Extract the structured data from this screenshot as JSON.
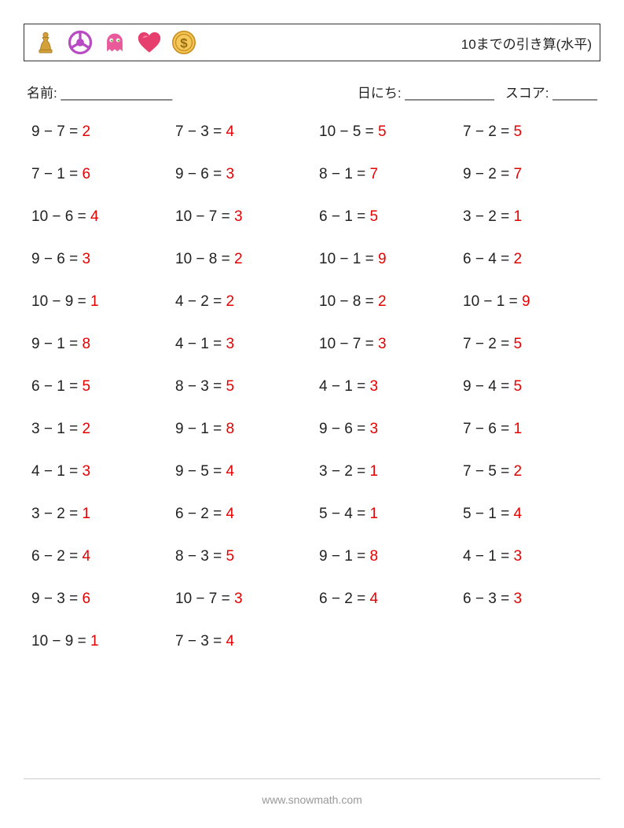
{
  "header": {
    "title": "10までの引き算(水平)",
    "icons": {
      "chess": {
        "color": "#d4a03a",
        "name": "chess-pawn-icon"
      },
      "wheel": {
        "color": "#b84bc4",
        "name": "steering-wheel-icon"
      },
      "ghost": {
        "color": "#e85a9a",
        "name": "ghost-icon"
      },
      "heart": {
        "color": "#e63e6d",
        "name": "heart-icon"
      },
      "coin": {
        "color": "#e8a23a",
        "name": "dollar-coin-icon"
      }
    }
  },
  "meta": {
    "name_label": "名前: _______________",
    "date_label": "日にち: ____________",
    "score_label": "スコア: ______"
  },
  "style": {
    "problem_fontsize": 19,
    "problem_color": "#222222",
    "answer_color": "#e60000",
    "background": "#ffffff",
    "columns": 4,
    "rows": 13,
    "row_gap": 32,
    "col_gap": 18
  },
  "problems": [
    {
      "a": 9,
      "b": 7,
      "ans": 2
    },
    {
      "a": 7,
      "b": 3,
      "ans": 4
    },
    {
      "a": 10,
      "b": 5,
      "ans": 5
    },
    {
      "a": 7,
      "b": 2,
      "ans": 5
    },
    {
      "a": 7,
      "b": 1,
      "ans": 6
    },
    {
      "a": 9,
      "b": 6,
      "ans": 3
    },
    {
      "a": 8,
      "b": 1,
      "ans": 7
    },
    {
      "a": 9,
      "b": 2,
      "ans": 7
    },
    {
      "a": 10,
      "b": 6,
      "ans": 4
    },
    {
      "a": 10,
      "b": 7,
      "ans": 3
    },
    {
      "a": 6,
      "b": 1,
      "ans": 5
    },
    {
      "a": 3,
      "b": 2,
      "ans": 1
    },
    {
      "a": 9,
      "b": 6,
      "ans": 3
    },
    {
      "a": 10,
      "b": 8,
      "ans": 2
    },
    {
      "a": 10,
      "b": 1,
      "ans": 9
    },
    {
      "a": 6,
      "b": 4,
      "ans": 2
    },
    {
      "a": 10,
      "b": 9,
      "ans": 1
    },
    {
      "a": 4,
      "b": 2,
      "ans": 2
    },
    {
      "a": 10,
      "b": 8,
      "ans": 2
    },
    {
      "a": 10,
      "b": 1,
      "ans": 9
    },
    {
      "a": 9,
      "b": 1,
      "ans": 8
    },
    {
      "a": 4,
      "b": 1,
      "ans": 3
    },
    {
      "a": 10,
      "b": 7,
      "ans": 3
    },
    {
      "a": 7,
      "b": 2,
      "ans": 5
    },
    {
      "a": 6,
      "b": 1,
      "ans": 5
    },
    {
      "a": 8,
      "b": 3,
      "ans": 5
    },
    {
      "a": 4,
      "b": 1,
      "ans": 3
    },
    {
      "a": 9,
      "b": 4,
      "ans": 5
    },
    {
      "a": 3,
      "b": 1,
      "ans": 2
    },
    {
      "a": 9,
      "b": 1,
      "ans": 8
    },
    {
      "a": 9,
      "b": 6,
      "ans": 3
    },
    {
      "a": 7,
      "b": 6,
      "ans": 1
    },
    {
      "a": 4,
      "b": 1,
      "ans": 3
    },
    {
      "a": 9,
      "b": 5,
      "ans": 4
    },
    {
      "a": 3,
      "b": 2,
      "ans": 1
    },
    {
      "a": 7,
      "b": 5,
      "ans": 2
    },
    {
      "a": 3,
      "b": 2,
      "ans": 1
    },
    {
      "a": 6,
      "b": 2,
      "ans": 4
    },
    {
      "a": 5,
      "b": 4,
      "ans": 1
    },
    {
      "a": 5,
      "b": 1,
      "ans": 4
    },
    {
      "a": 6,
      "b": 2,
      "ans": 4
    },
    {
      "a": 8,
      "b": 3,
      "ans": 5
    },
    {
      "a": 9,
      "b": 1,
      "ans": 8
    },
    {
      "a": 4,
      "b": 1,
      "ans": 3
    },
    {
      "a": 9,
      "b": 3,
      "ans": 6
    },
    {
      "a": 10,
      "b": 7,
      "ans": 3
    },
    {
      "a": 6,
      "b": 2,
      "ans": 4
    },
    {
      "a": 6,
      "b": 3,
      "ans": 3
    },
    {
      "a": 10,
      "b": 9,
      "ans": 1
    },
    {
      "a": 7,
      "b": 3,
      "ans": 4
    }
  ],
  "footer": {
    "url": "www.snowmath.com"
  }
}
